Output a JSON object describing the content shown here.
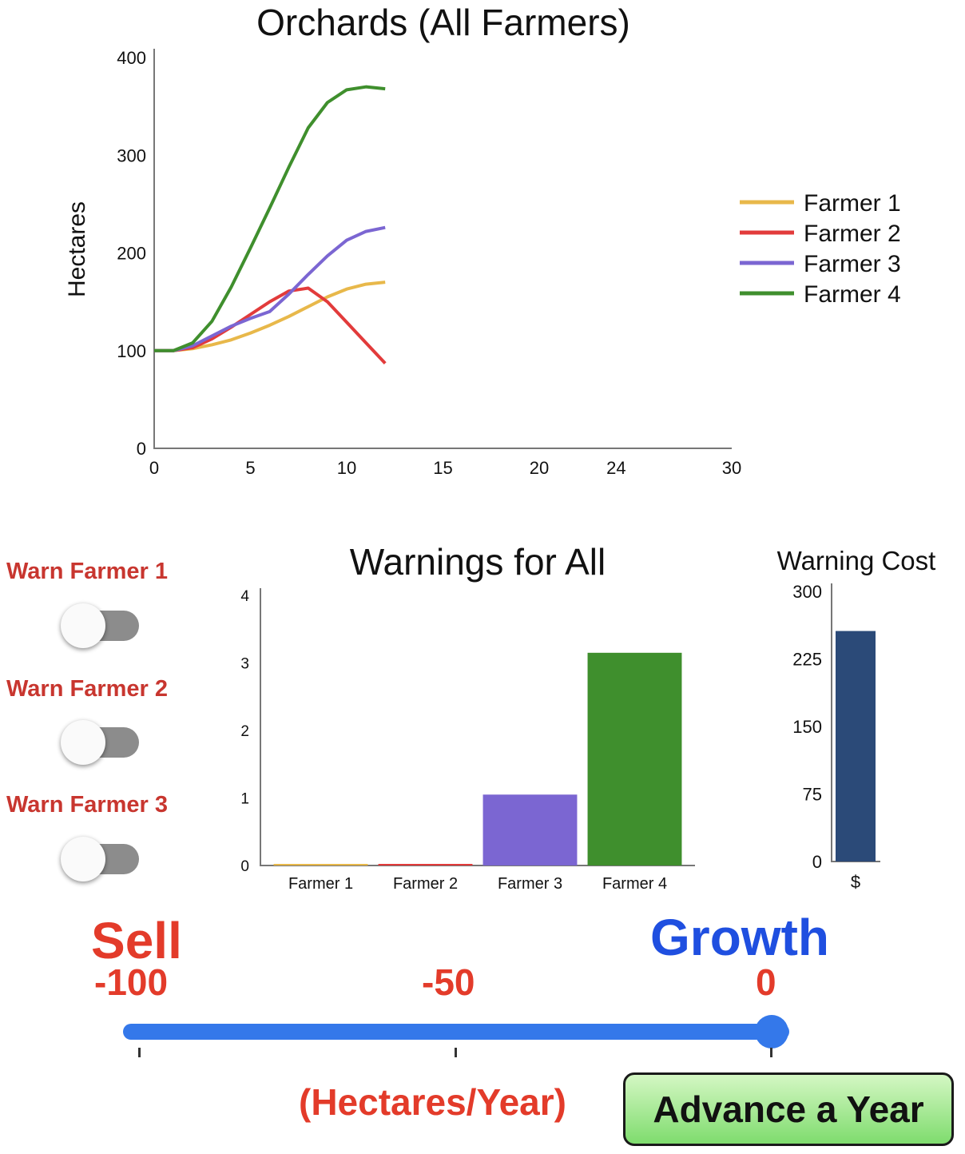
{
  "colors": {
    "farmer1": "#e8b84a",
    "farmer2": "#e23b3b",
    "farmer3": "#7b66d2",
    "farmer4": "#3f8f2d",
    "cost_bar": "#2b4a78",
    "accent_red": "#c8362f",
    "accent_blue": "#1f4fe0",
    "slider": "#3478ea"
  },
  "chart_data": [
    {
      "type": "line",
      "title": "Orchards (All Farmers)",
      "ylabel": "Hectares",
      "xlabel": "",
      "xlim": [
        0,
        30
      ],
      "ylim": [
        0,
        400
      ],
      "x_ticks": [
        0,
        5,
        10,
        15,
        20,
        24,
        30
      ],
      "y_ticks": [
        0,
        100,
        200,
        300,
        400
      ],
      "grid": false,
      "legend_position": "right",
      "x": [
        0,
        1,
        2,
        3,
        4,
        5,
        6,
        7,
        8,
        9,
        10,
        11,
        12
      ],
      "series": [
        {
          "name": "Farmer 1",
          "values": [
            100,
            100,
            102,
            106,
            111,
            118,
            126,
            135,
            145,
            155,
            163,
            168,
            170
          ]
        },
        {
          "name": "Farmer 2",
          "values": [
            100,
            100,
            103,
            112,
            124,
            137,
            150,
            161,
            164,
            150,
            129,
            108,
            87
          ]
        },
        {
          "name": "Farmer 3",
          "values": [
            100,
            100,
            105,
            115,
            125,
            133,
            140,
            158,
            178,
            197,
            213,
            222,
            226
          ]
        },
        {
          "name": "Farmer 4",
          "values": [
            100,
            100,
            108,
            130,
            165,
            205,
            246,
            288,
            328,
            354,
            367,
            370,
            368
          ]
        }
      ]
    },
    {
      "type": "bar",
      "title": "Warnings for All",
      "categories": [
        "Farmer 1",
        "Farmer 2",
        "Farmer 3",
        "Farmer 4"
      ],
      "values": [
        0,
        0,
        1.05,
        3.15
      ],
      "ylim": [
        0,
        4
      ],
      "y_ticks": [
        0,
        1,
        2,
        3,
        4
      ]
    },
    {
      "type": "bar",
      "title": "Warning Cost",
      "categories": [
        "$"
      ],
      "values": [
        256
      ],
      "ylim": [
        0,
        300
      ],
      "y_ticks": [
        0,
        75,
        150,
        225,
        300
      ]
    }
  ],
  "controls": {
    "warn_labels": [
      "Warn Farmer 1",
      "Warn Farmer 2",
      "Warn Farmer 3"
    ],
    "warn_states": [
      false,
      false,
      false
    ],
    "slider": {
      "left_title": "Sell",
      "right_title": "Growth",
      "tick_labels": [
        "-100",
        "-50",
        "0"
      ],
      "min": -100,
      "max": 0,
      "value": 0,
      "unit_label": "(Hectares/Year)"
    },
    "advance_label": "Advance a Year"
  }
}
